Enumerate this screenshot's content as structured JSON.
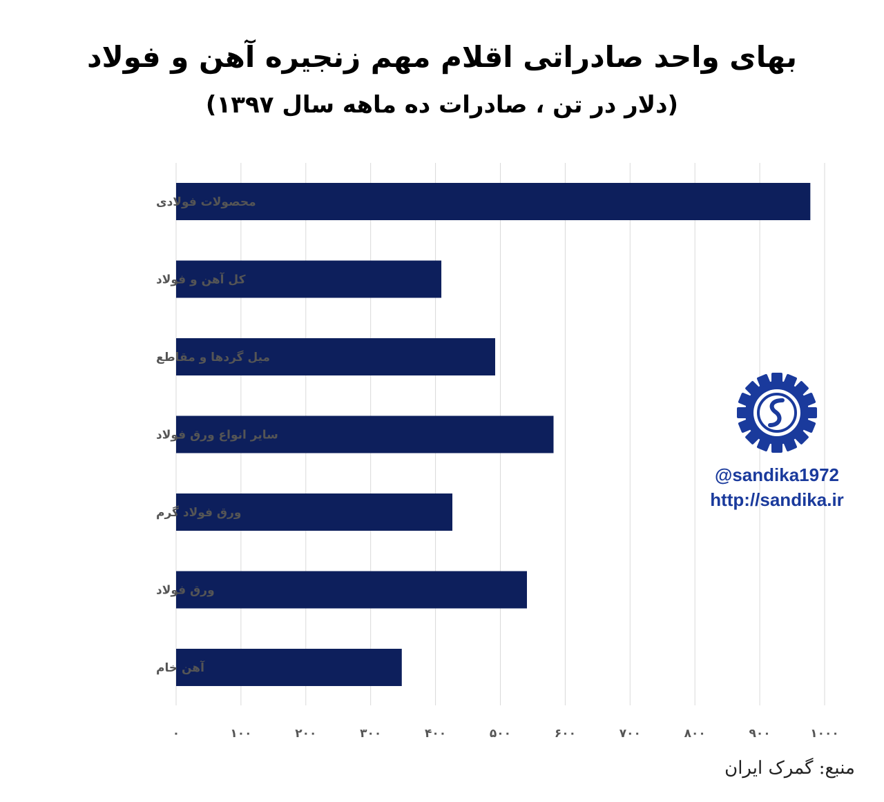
{
  "title": "بهای واحد صادراتی اقلام مهم زنجیره آهن و فولاد",
  "subtitle": "(دلار در تن ، صادرات ده ماهه سال ۱۳۹۷)",
  "source": "منبع: گمرک ایران",
  "brand": {
    "handle": "@sandika1972",
    "url": "http://sandika.ir",
    "logo_icon": "sandika-logo-icon",
    "color": "#1a3a9c"
  },
  "colors": {
    "bar": "#0d1f5c",
    "grid": "#d9d9d9"
  },
  "chart_data": {
    "type": "bar",
    "orientation": "horizontal",
    "categories": [
      "محصولات فولادی",
      "کل آهن و فولاد",
      "میل گردها و مقاطع",
      "سایر انواع ورق فولاد",
      "ورق فولاد گرم",
      "ورق فولاد",
      "آهن خام"
    ],
    "values": [
      978,
      409,
      492,
      582,
      426,
      541,
      348
    ],
    "xlim": [
      0,
      1000
    ],
    "xticks": [
      0,
      100,
      200,
      300,
      400,
      500,
      600,
      700,
      800,
      900,
      1000
    ],
    "xtick_labels": [
      "۰",
      "۱۰۰",
      "۲۰۰",
      "۳۰۰",
      "۴۰۰",
      "۵۰۰",
      "۶۰۰",
      "۷۰۰",
      "۸۰۰",
      "۹۰۰",
      "۱۰۰۰"
    ],
    "grid": true,
    "legend": "none"
  }
}
